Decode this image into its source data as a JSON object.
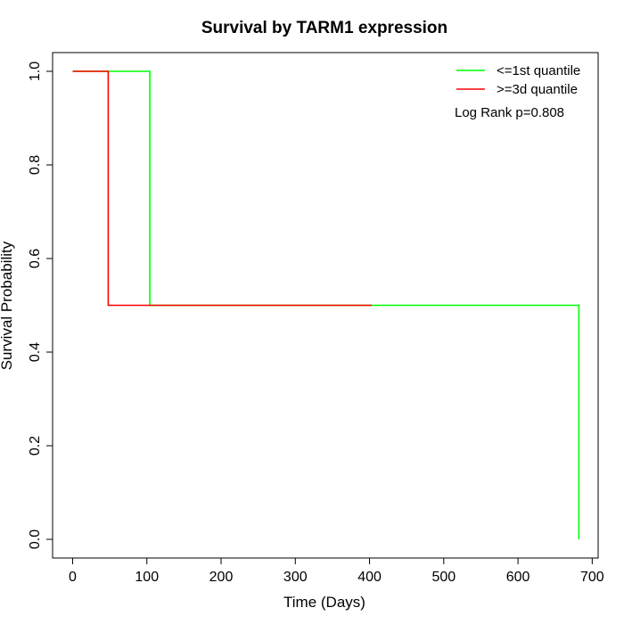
{
  "chart_data": {
    "type": "line",
    "title": "Survival by TARM1 expression",
    "xlabel": "Time (Days)",
    "ylabel": "Survival Probability",
    "xlim": [
      -27,
      708
    ],
    "ylim": [
      -0.04,
      1.04
    ],
    "xticks": [
      0,
      100,
      200,
      300,
      400,
      500,
      600,
      700
    ],
    "yticks": [
      0.0,
      0.2,
      0.4,
      0.6,
      0.8,
      1.0
    ],
    "xtick_labels": [
      "0",
      "100",
      "200",
      "300",
      "400",
      "500",
      "600",
      "700"
    ],
    "ytick_labels": [
      "0.0",
      "0.2",
      "0.4",
      "0.6",
      "0.8",
      "1.0"
    ],
    "grid": false,
    "legend_position": "top-right",
    "annotation": "Log Rank p=0.808",
    "series": [
      {
        "name": "<=1st quantile",
        "color": "#00ff00",
        "x": [
          0,
          104,
          104,
          682,
          682
        ],
        "y": [
          1.0,
          1.0,
          0.5,
          0.5,
          0.0
        ]
      },
      {
        "name": ">=3d quantile",
        "color": "#ff0000",
        "x": [
          0,
          48,
          48,
          403
        ],
        "y": [
          1.0,
          1.0,
          0.5,
          0.5
        ]
      }
    ]
  }
}
